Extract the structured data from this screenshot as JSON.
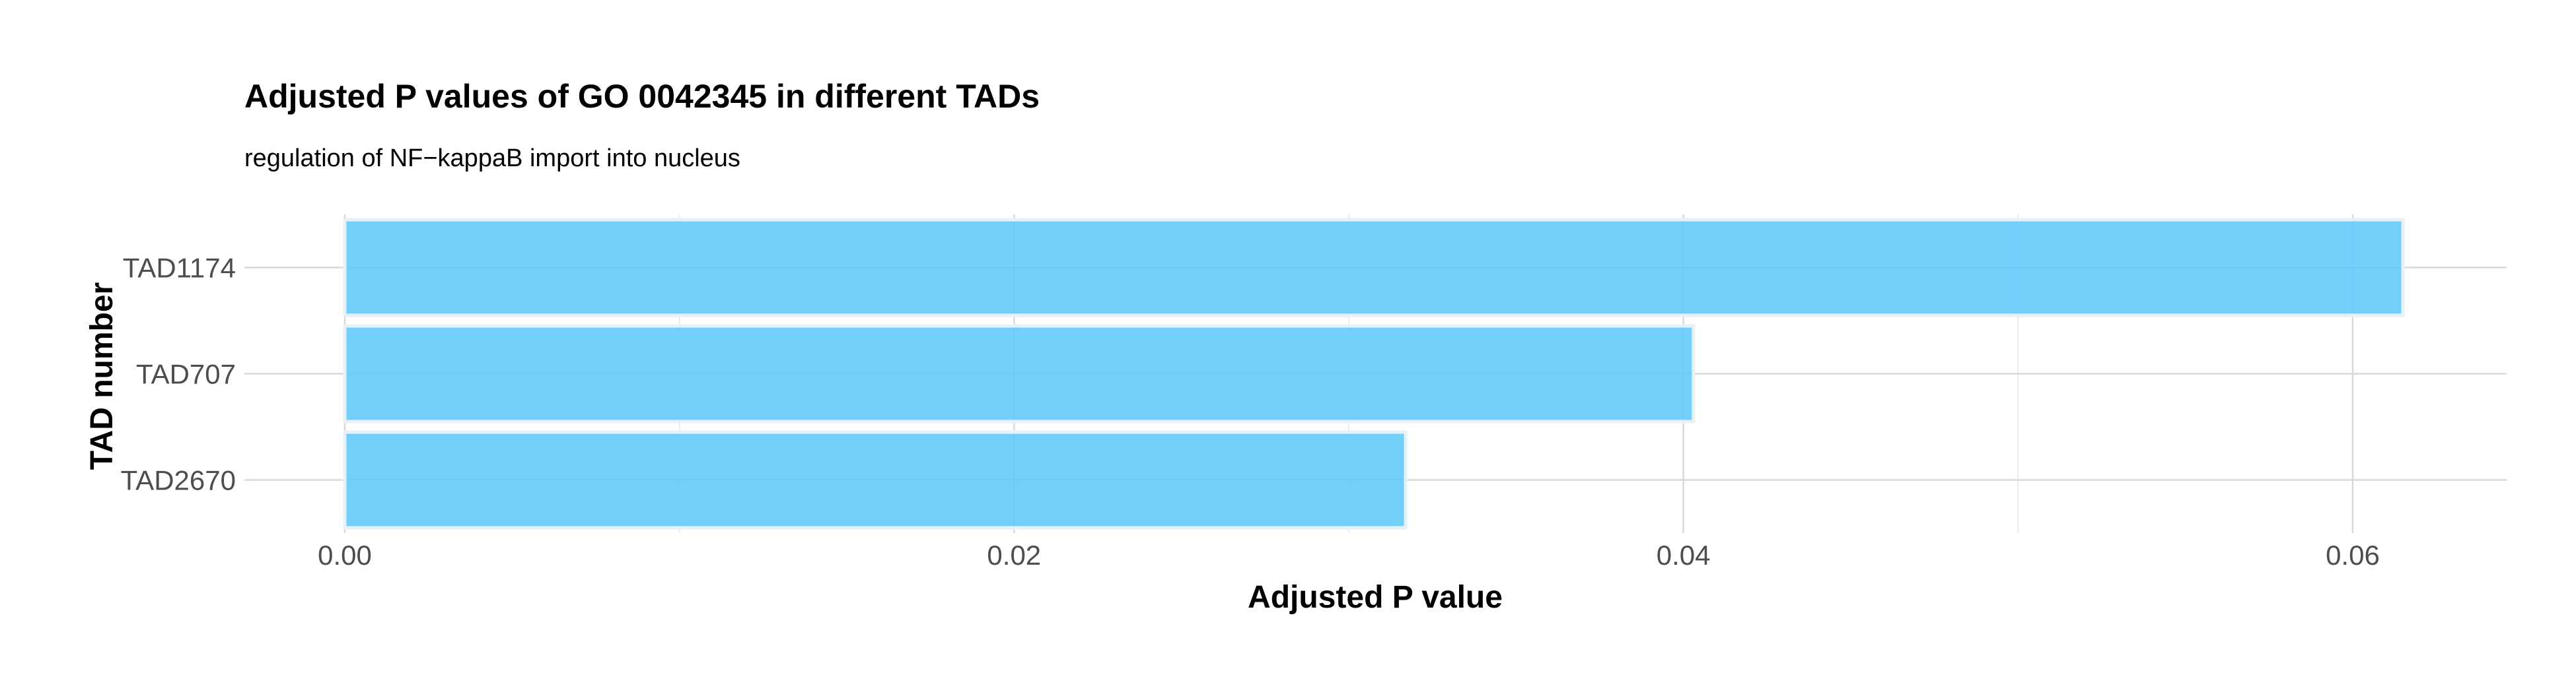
{
  "chart_data": {
    "type": "bar",
    "orientation": "horizontal",
    "title": "Adjusted P values of GO 0042345 in different TADs",
    "subtitle": "regulation of NF−kappaB import into nucleus",
    "xlabel": "Adjusted P value",
    "ylabel": "TAD number",
    "categories": [
      "TAD1174",
      "TAD707",
      "TAD2670"
    ],
    "values": [
      0.0615,
      0.0403,
      0.0317
    ],
    "xlim": [
      -0.003,
      0.0646
    ],
    "x_ticks": [
      0.0,
      0.02,
      0.04,
      0.06
    ],
    "x_tick_labels": [
      "0.00",
      "0.02",
      "0.04",
      "0.06"
    ],
    "x_minor_ticks": [
      0.01,
      0.03,
      0.05
    ],
    "grid": true,
    "legend": "none",
    "bar_color": "#5bc8fa",
    "bar_outline_color": "#e6f1f8"
  }
}
